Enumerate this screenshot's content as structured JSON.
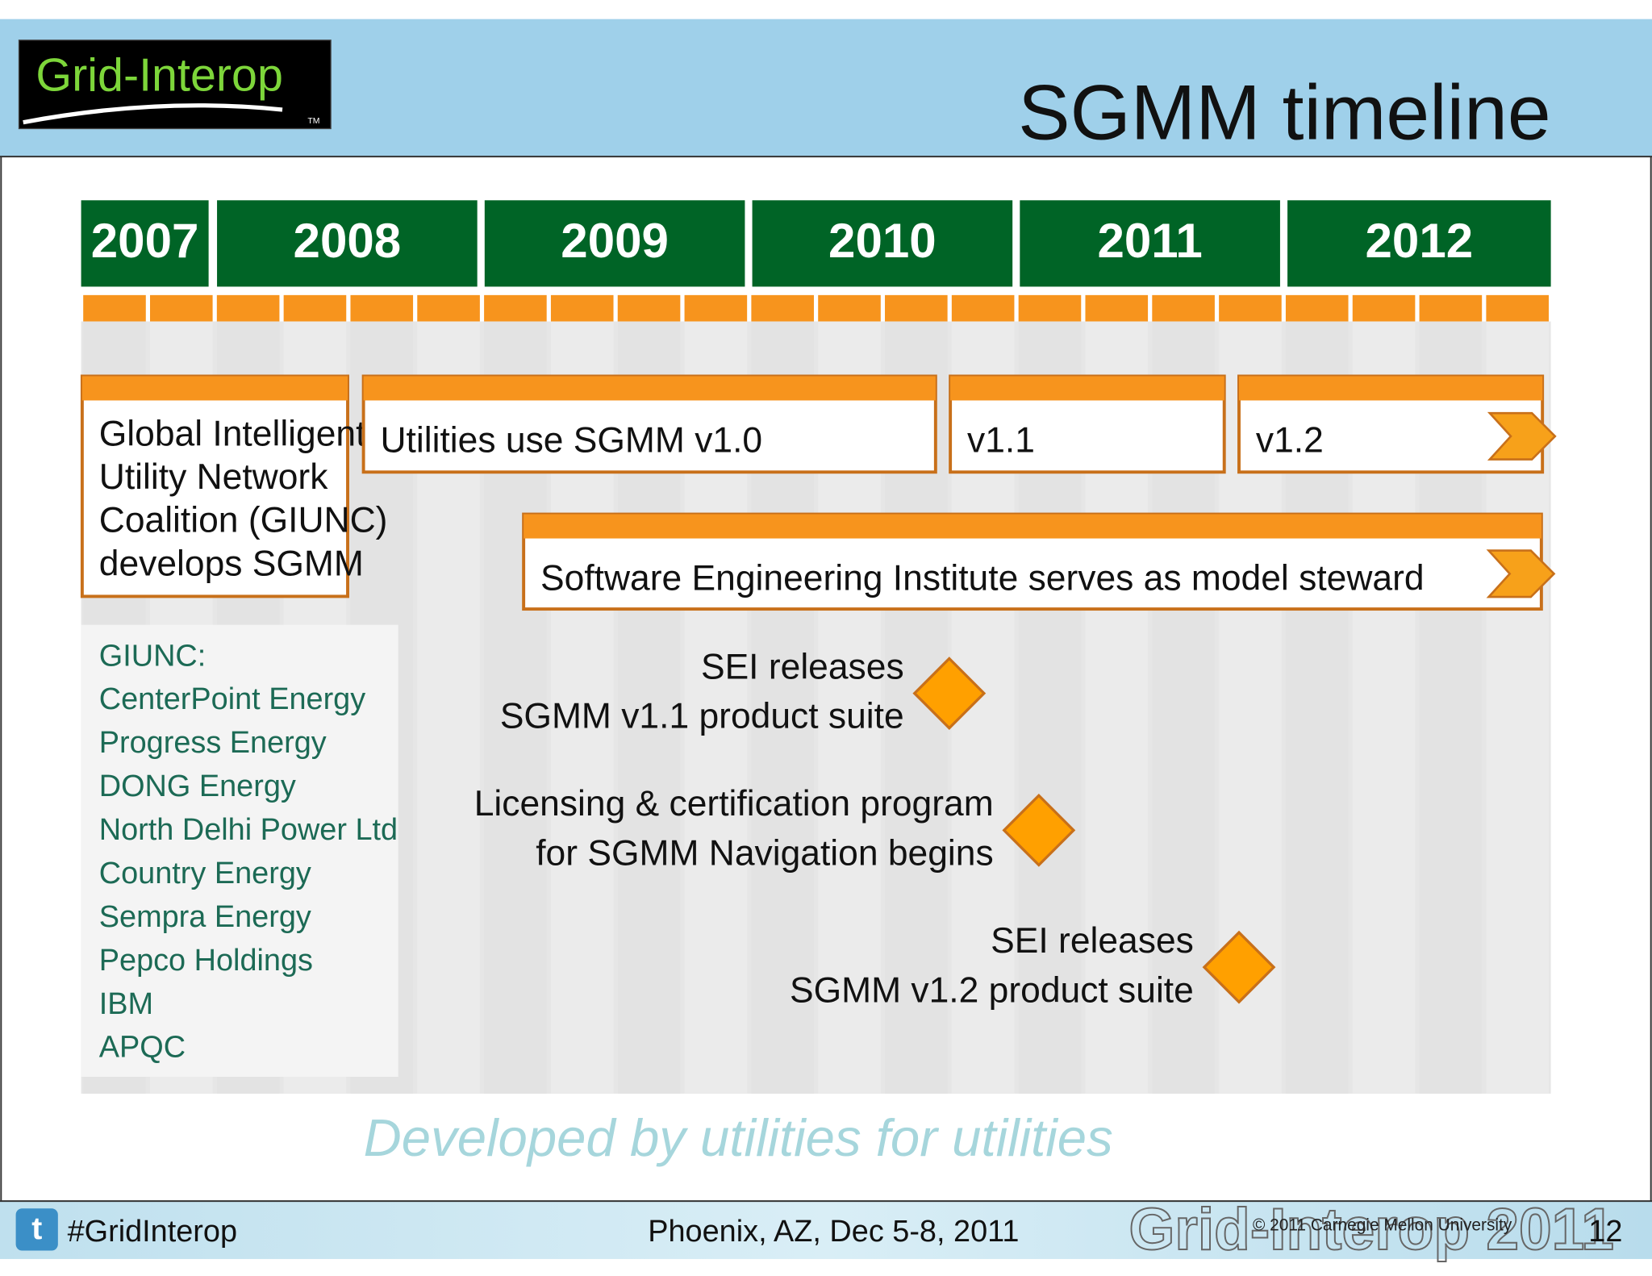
{
  "header": {
    "logo": "Grid-Interop",
    "logo_tm": "TM",
    "title": "SGMM timeline"
  },
  "timeline": {
    "years": [
      "2007",
      "2008",
      "2009",
      "2010",
      "2011",
      "2012"
    ],
    "bars": [
      {
        "lines": [
          "Global Intelligent",
          "Utility Network",
          "Coalition (GIUNC)",
          "develops SGMM"
        ]
      },
      {
        "lines": [
          "Utilities use SGMM v1.0"
        ]
      },
      {
        "lines": [
          "v1.1"
        ]
      },
      {
        "lines": [
          "v1.2"
        ]
      },
      {
        "lines": [
          "Software Engineering Institute serves as model steward"
        ]
      }
    ],
    "members": {
      "heading": "GIUNC:",
      "names": [
        "CenterPoint Energy",
        "Progress Energy",
        "DONG Energy",
        "North Delhi Power Ltd",
        "Country Energy",
        "Sempra Energy",
        "Pepco Holdings",
        "IBM",
        "APQC"
      ]
    },
    "milestones": [
      {
        "lines": [
          "SEI releases",
          "SGMM v1.1 product suite"
        ]
      },
      {
        "lines": [
          "Licensing & certification program",
          "for SGMM Navigation begins"
        ]
      },
      {
        "lines": [
          "SEI releases",
          "SGMM v1.2 product suite"
        ]
      }
    ]
  },
  "tagline": "Developed by utilities for utilities",
  "footer": {
    "hashtag": "#GridInterop",
    "event": "Phoenix, AZ, Dec 5-8, 2011",
    "copyright": "© 2011 Carnegie Mellon University",
    "watermark": "Grid-Interop 2011",
    "page": "12"
  }
}
